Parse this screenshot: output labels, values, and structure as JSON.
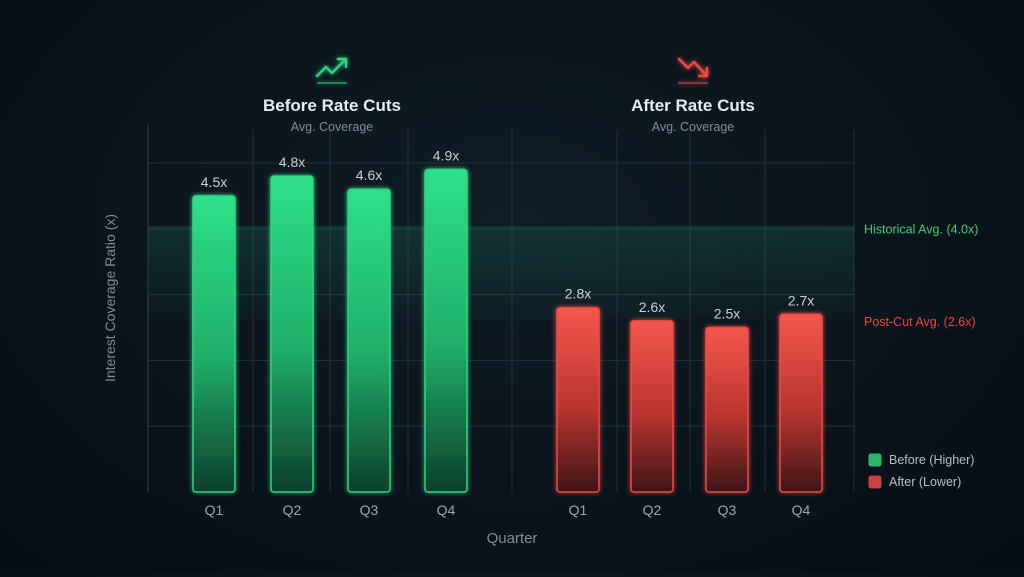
{
  "chart_data": {
    "type": "bar",
    "ylabel": "Interest Coverage Ratio (x)",
    "xlabel": "Quarter",
    "ylim": [
      0,
      5.5
    ],
    "grid": true,
    "legend_position": "bottom-right",
    "colors": {
      "before": "#2fd47f",
      "after": "#f04a43",
      "historical_line": "#36d07e",
      "postcut_line": "#f0453e",
      "text": "#c9d2d8",
      "muted": "#7f8d96",
      "grid": "#22323c"
    },
    "groups": [
      {
        "title": "Before Rate Cuts",
        "subtitle": "Avg. Coverage",
        "icon": "trend-up-icon",
        "legend_label": "Before (Higher)",
        "categories": [
          "Q1",
          "Q2",
          "Q3",
          "Q4"
        ],
        "values": [
          4.5,
          4.8,
          4.6,
          4.9
        ],
        "labels": [
          "4.5x",
          "4.8x",
          "4.6x",
          "4.9x"
        ]
      },
      {
        "title": "After Rate Cuts",
        "subtitle": "Avg. Coverage",
        "icon": "trend-down-icon",
        "legend_label": "After (Lower)",
        "categories": [
          "Q1",
          "Q2",
          "Q3",
          "Q4"
        ],
        "values": [
          2.8,
          2.6,
          2.5,
          2.7
        ],
        "labels": [
          "2.8x",
          "2.6x",
          "2.5x",
          "2.7x"
        ]
      }
    ],
    "reference_lines": [
      {
        "label": "Historical Avg. (4.0x)",
        "value": 4.0
      },
      {
        "label": "Post-Cut Avg. (2.6x)",
        "value": 2.6
      }
    ]
  }
}
